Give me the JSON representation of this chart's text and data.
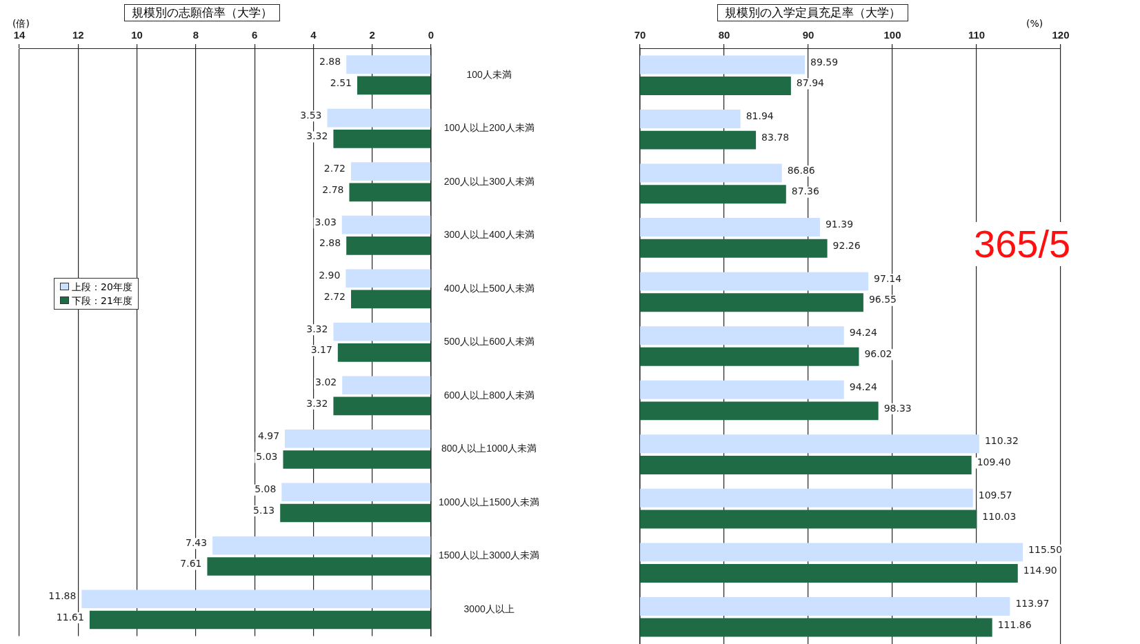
{
  "chart_data": [
    {
      "type": "bar",
      "orientation": "horizontal",
      "title": "規模別の志願倍率（大学）",
      "xlabel": "(倍)",
      "categories": [
        "100人未満",
        "100人以上200人未満",
        "200人以上300人未満",
        "300人以上400人未満",
        "400人以上500人未満",
        "500人以上600人未満",
        "600人以上800人未満",
        "800人以上1000人未満",
        "1000人以上1500人未満",
        "1500人以上3000人未満",
        "3000人以上"
      ],
      "xlim": [
        14,
        0
      ],
      "xticks": [
        14,
        12,
        10,
        8,
        6,
        4,
        2,
        0
      ],
      "grid": "x",
      "legend": "left",
      "series": [
        {
          "name": "上段：20年度",
          "color": "#cce0ff",
          "values": [
            2.88,
            3.53,
            2.72,
            3.03,
            2.9,
            3.32,
            3.02,
            4.97,
            5.08,
            7.43,
            11.88
          ],
          "value_labels": [
            "2.88",
            "3.53",
            "2.72",
            "3.03",
            "2.90",
            "3.32",
            "3.02",
            "4.97",
            "5.08",
            "7.43",
            "11.88"
          ]
        },
        {
          "name": "下段：21年度",
          "color": "#1e6b45",
          "values": [
            2.51,
            3.32,
            2.78,
            2.88,
            2.72,
            3.17,
            3.32,
            5.03,
            5.13,
            7.61,
            11.61
          ],
          "value_labels": [
            "2.51",
            "3.32",
            "2.78",
            "2.88",
            "2.72",
            "3.17",
            "3.32",
            "5.03",
            "5.13",
            "7.61",
            "11.61"
          ]
        }
      ]
    },
    {
      "type": "bar",
      "orientation": "horizontal",
      "title": "規模別の入学定員充足率（大学）",
      "xlabel": "(%)",
      "categories": [
        null,
        null,
        null,
        null,
        null,
        null,
        null,
        null,
        null,
        null,
        null
      ],
      "xlim": [
        70,
        120
      ],
      "xticks": [
        70,
        80,
        90,
        100,
        110,
        120
      ],
      "grid": "x",
      "tick_labels": "x",
      "annotations": [
        "365/5"
      ],
      "series": [
        {
          "color": "#cce0ff",
          "values": [
            89.59,
            81.94,
            86.86,
            91.39,
            97.14,
            94.24,
            94.24,
            110.32,
            109.57,
            115.5,
            113.97
          ],
          "value_labels": [
            "89.59",
            "81.94",
            "86.86",
            "91.39",
            "97.14",
            "94.24",
            "94.24",
            "110.32",
            "109.57",
            "115.50",
            "113.97"
          ]
        },
        {
          "color": "#1e6b45",
          "values": [
            87.94,
            83.78,
            87.36,
            92.26,
            96.55,
            96.02,
            98.33,
            109.4,
            110.03,
            114.9,
            111.86
          ],
          "value_labels": [
            "87.94",
            "83.78",
            "87.36",
            "92.26",
            "96.55",
            "96.02",
            "98.33",
            "109.40",
            "110.03",
            "114.90",
            "111.86"
          ]
        }
      ]
    }
  ]
}
